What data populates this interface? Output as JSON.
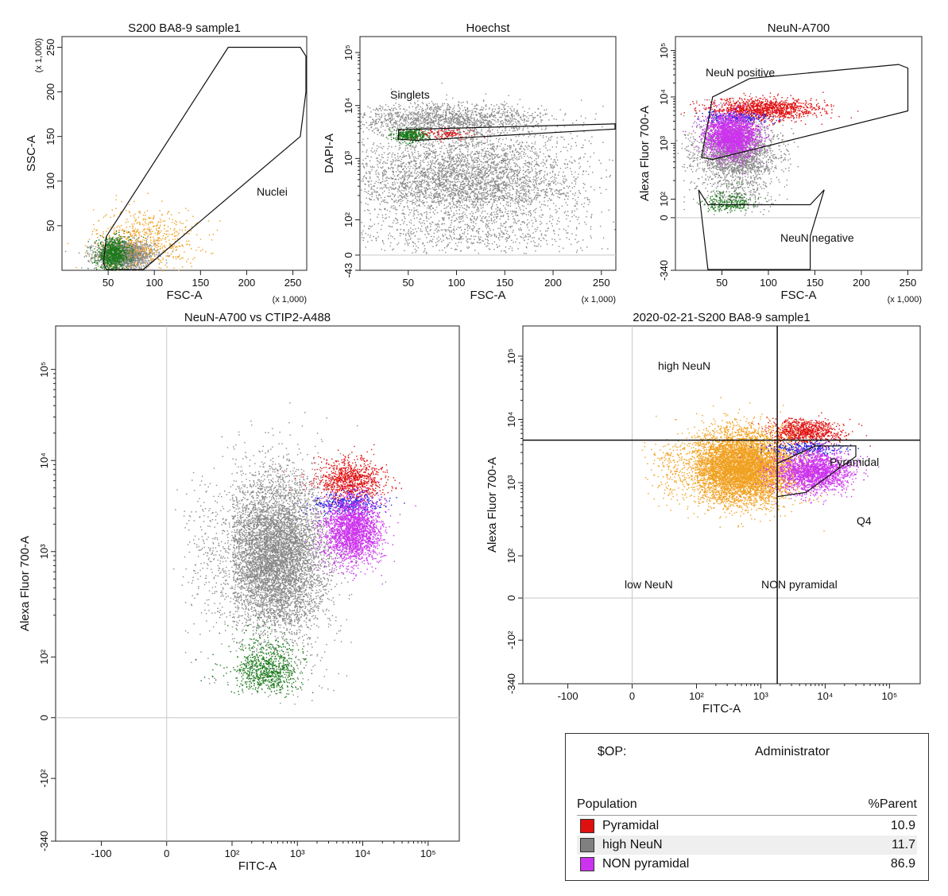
{
  "chart_data": [
    {
      "type": "scatter",
      "title": "S200 BA8-9 sample1",
      "xlabel": "FSC-A",
      "ylabel": "SSC-A",
      "x_scale": "linear",
      "y_scale": "linear",
      "x_multiplier": "(x 1,000)",
      "y_multiplier": "(x 1,000)",
      "xlim": [
        0,
        265
      ],
      "ylim": [
        0,
        262
      ],
      "x_ticks": [
        "50",
        "100",
        "150",
        "200",
        "250"
      ],
      "y_ticks": [
        "50",
        "100",
        "150",
        "200",
        "250"
      ],
      "gates": [
        {
          "name": "Nuclei",
          "shape": "polygon",
          "vertices": [
            [
              45,
              8
            ],
            [
              48,
              38
            ],
            [
              180,
              250
            ],
            [
              258,
              250
            ],
            [
              265,
              240
            ],
            [
              265,
              200
            ],
            [
              258,
              150
            ],
            [
              88,
              0
            ],
            [
              48,
              0
            ]
          ]
        }
      ],
      "series": [
        {
          "color": "#888888",
          "count": 1600,
          "x_center": 68,
          "y_center": 18,
          "x_spread": 16,
          "y_spread": 8
        },
        {
          "color": "#f0a020",
          "count": 650,
          "x_center": 90,
          "y_center": 35,
          "x_spread": 28,
          "y_spread": 18
        },
        {
          "color": "#1a7a1a",
          "count": 800,
          "x_center": 55,
          "y_center": 18,
          "x_spread": 9,
          "y_spread": 9
        }
      ]
    },
    {
      "type": "scatter",
      "title": "Hoechst",
      "xlabel": "FSC-A",
      "ylabel": "DAPI-A",
      "x_scale": "linear",
      "y_scale": "biexponential",
      "x_multiplier": "(x 1,000)",
      "xlim": [
        0,
        265
      ],
      "x_ticks": [
        "50",
        "100",
        "150",
        "200",
        "250"
      ],
      "y_ticks": [
        "-43",
        "0",
        "10²",
        "10³",
        "10⁴",
        "10⁵"
      ],
      "gates": [
        {
          "name": "Singlets",
          "shape": "polygon",
          "vertices": [
            [
              40,
              2300
            ],
            [
              40,
              3500
            ],
            [
              265,
              4500
            ],
            [
              265,
              3600
            ],
            [
              60,
              2200
            ]
          ]
        }
      ],
      "series": [
        {
          "color": "#888888",
          "count": 4500,
          "x_center": 110,
          "y_center": 350,
          "x_spread": 60,
          "y_spread": 0.5
        },
        {
          "color": "#888888",
          "count": 1500,
          "x_center": 90,
          "y_center": 5500,
          "x_spread": 50,
          "y_spread": 0.15
        },
        {
          "color": "#1a7a1a",
          "count": 350,
          "x_center": 52,
          "y_center": 2800,
          "x_spread": 8,
          "y_spread": 0.06
        },
        {
          "color": "#e01010",
          "count": 120,
          "x_center": 90,
          "y_center": 3000,
          "x_spread": 15,
          "y_spread": 0.05
        }
      ]
    },
    {
      "type": "scatter",
      "title": "NeuN-A700",
      "xlabel": "FSC-A",
      "ylabel": "Alexa Fluor 700-A",
      "x_scale": "linear",
      "y_scale": "biexponential",
      "x_multiplier": "(x 1,000)",
      "xlim": [
        0,
        265
      ],
      "x_ticks": [
        "50",
        "100",
        "150",
        "200",
        "250"
      ],
      "y_ticks": [
        "-340",
        "0",
        "10²",
        "10³",
        "10⁴",
        "10⁵"
      ],
      "gates": [
        {
          "name": "NeuN positive",
          "shape": "polygon",
          "vertices": [
            [
              28,
              500
            ],
            [
              40,
              10000
            ],
            [
              80,
              25000
            ],
            [
              240,
              50000
            ],
            [
              250,
              42000
            ],
            [
              250,
              5000
            ],
            [
              40,
              450
            ]
          ]
        },
        {
          "name": "NeuN negative",
          "shape": "polygon",
          "vertices": [
            [
              25,
              150
            ],
            [
              35,
              70
            ],
            [
              145,
              70
            ],
            [
              160,
              150
            ],
            [
              145,
              -100
            ],
            [
              145,
              -340
            ],
            [
              35,
              -340
            ]
          ]
        }
      ],
      "series": [
        {
          "color": "#888888",
          "count": 2500,
          "x_center": 65,
          "y_center": 600,
          "x_spread": 22,
          "y_spread": 0.4
        },
        {
          "color": "#e01010",
          "count": 1200,
          "x_center": 95,
          "y_center": 5500,
          "x_spread": 30,
          "y_spread": 0.12
        },
        {
          "color": "#2020e0",
          "count": 250,
          "x_center": 65,
          "y_center": 3600,
          "x_spread": 18,
          "y_spread": 0.06
        },
        {
          "color": "#cc33ee",
          "count": 2300,
          "x_center": 60,
          "y_center": 1500,
          "x_spread": 14,
          "y_spread": 0.22
        },
        {
          "color": "#1a7a1a",
          "count": 250,
          "x_center": 55,
          "y_center": 80,
          "x_spread": 12,
          "y_spread": 0.15
        }
      ]
    },
    {
      "type": "scatter",
      "title": "NeuN-A700 vs CTIP2-A488",
      "xlabel": "FITC-A",
      "ylabel": "Alexa Fluor 700-A",
      "x_scale": "biexponential",
      "y_scale": "biexponential",
      "x_ticks": [
        "-100",
        "0",
        "10²",
        "10³",
        "10⁴",
        "10⁵"
      ],
      "y_ticks": [
        "-340",
        "-10²",
        "0",
        "10²",
        "10³",
        "10⁴",
        "10⁵"
      ],
      "series": [
        {
          "color": "#888888",
          "count": 7000,
          "x_center": 450,
          "y_center": 900,
          "x_spread": 0.4,
          "y_spread": 0.45
        },
        {
          "color": "#e01010",
          "count": 900,
          "x_center": 6500,
          "y_center": 6200,
          "x_spread": 0.25,
          "y_spread": 0.12
        },
        {
          "color": "#2020e0",
          "count": 400,
          "x_center": 6000,
          "y_center": 3300,
          "x_spread": 0.25,
          "y_spread": 0.06
        },
        {
          "color": "#cc33ee",
          "count": 2200,
          "x_center": 7000,
          "y_center": 1700,
          "x_spread": 0.22,
          "y_spread": 0.18
        },
        {
          "color": "#1a7a1a",
          "count": 800,
          "x_center": 330,
          "y_center": 80,
          "x_spread": 0.25,
          "y_spread": 0.12
        }
      ]
    },
    {
      "type": "scatter",
      "title": "2020-02-21-S200 BA8-9 sample1",
      "xlabel": "FITC-A",
      "ylabel": "Alexa Fluor 700-A",
      "x_scale": "biexponential",
      "y_scale": "biexponential",
      "x_ticks": [
        "-100",
        "0",
        "10²",
        "10³",
        "10⁴",
        "10⁵"
      ],
      "y_ticks": [
        "-340",
        "-10²",
        "0",
        "10²",
        "10³",
        "10⁴",
        "10⁵"
      ],
      "quadrant_x": 1800,
      "quadrant_y": 4700,
      "region_labels": [
        "high NeuN",
        "low NeuN",
        "NON pyramidal",
        "Q4"
      ],
      "gates": [
        {
          "name": "Pyramidal",
          "shape": "polygon",
          "vertices": [
            [
              1800,
              2000
            ],
            [
              7000,
              3800
            ],
            [
              30000,
              3800
            ],
            [
              30000,
              2600
            ],
            [
              5000,
              700
            ],
            [
              1800,
              600
            ]
          ]
        }
      ],
      "series": [
        {
          "color": "#f0a020",
          "count": 7000,
          "x_center": 500,
          "y_center": 1800,
          "x_spread": 0.42,
          "y_spread": 0.28
        },
        {
          "color": "#e01010",
          "count": 800,
          "x_center": 5000,
          "y_center": 6500,
          "x_spread": 0.28,
          "y_spread": 0.1
        },
        {
          "color": "#2020e0",
          "count": 300,
          "x_center": 5000,
          "y_center": 3500,
          "x_spread": 0.3,
          "y_spread": 0.06
        },
        {
          "color": "#cc33ee",
          "count": 2000,
          "x_center": 6500,
          "y_center": 1500,
          "x_spread": 0.3,
          "y_spread": 0.16
        }
      ]
    }
  ],
  "stats": {
    "op_key": "$OP:",
    "op_value": "Administrator",
    "col_population": "Population",
    "col_parent": "%Parent",
    "rows": [
      {
        "name": "Pyramidal",
        "value": "10.9",
        "color": "#e01010"
      },
      {
        "name": "high NeuN",
        "value": "11.7",
        "color": "#808080"
      },
      {
        "name": "NON pyramidal",
        "value": "86.9",
        "color": "#cc33ee"
      }
    ]
  }
}
